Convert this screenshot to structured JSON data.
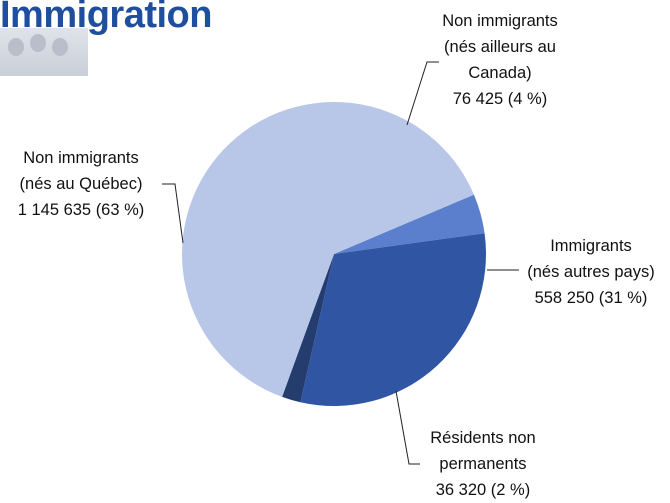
{
  "header": {
    "title": "Immigration"
  },
  "colors": {
    "title": "#1f4e9e",
    "slices": [
      "#5b7fcc",
      "#2f55a3",
      "#253d6e",
      "#b8c7e8"
    ]
  },
  "labels": {
    "quebec": {
      "l1": "Non immigrants",
      "l2": "(nés au Québec)",
      "l3": "1 145 635 (63 %)"
    },
    "canada": {
      "l1": "Non immigrants",
      "l2": "(nés ailleurs au",
      "l3": "Canada)",
      "l4": "76 425 (4 %)"
    },
    "immig": {
      "l1": "Immigrants",
      "l2": "(nés autres pays)",
      "l3": "558 250 (31 %)"
    },
    "resident": {
      "l1": "Résidents non",
      "l2": "permanents",
      "l3": "36 320 (2 %)"
    }
  },
  "chart_data": {
    "type": "pie",
    "title": "Immigration",
    "slices": [
      {
        "label": "Non immigrants (nés ailleurs au Canada)",
        "value": 76425,
        "percent": 4
      },
      {
        "label": "Immigrants (nés autres pays)",
        "value": 558250,
        "percent": 31
      },
      {
        "label": "Résidents non permanents",
        "value": 36320,
        "percent": 2
      },
      {
        "label": "Non immigrants (nés au Québec)",
        "value": 1145635,
        "percent": 63
      }
    ]
  }
}
